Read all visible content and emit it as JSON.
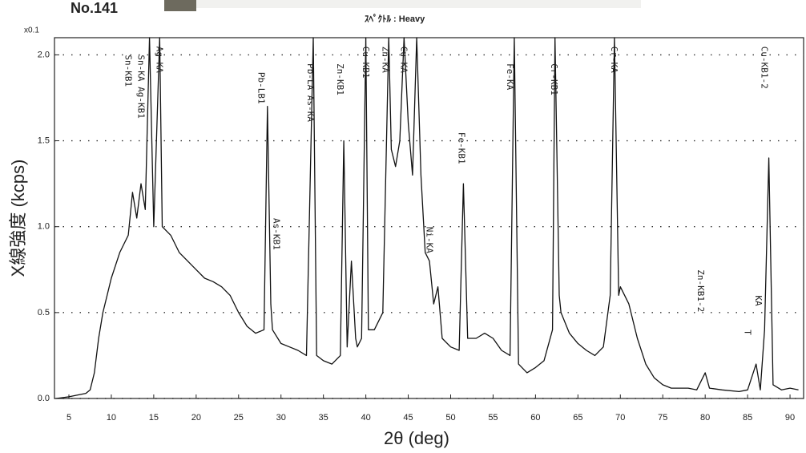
{
  "header": {
    "id": "No.141",
    "subtitle": "ｽﾍﾟｸﾄﾙ : Heavy",
    "scale_note": "x0.1"
  },
  "chart_data": {
    "type": "line",
    "x_label": "2θ (deg)",
    "y_label": "X線強度 (kcps)",
    "color": "#111111",
    "xlim": [
      3.3,
      91.6
    ],
    "ylim": [
      0,
      2.1
    ],
    "xticks": [
      5,
      10,
      15,
      20,
      25,
      30,
      35,
      40,
      45,
      50,
      55,
      60,
      65,
      70,
      75,
      80,
      85,
      90
    ],
    "yticks": [
      {
        "value": 0,
        "label": "0.0"
      },
      {
        "value": 0.5,
        "label": "0.5"
      },
      {
        "value": 1,
        "label": "1.0"
      },
      {
        "value": 1.5,
        "label": "1.5"
      },
      {
        "value": 2,
        "label": "2.0"
      }
    ],
    "grid": true,
    "x": [
      3.5,
      5,
      6,
      7,
      7.5,
      8,
      8.5,
      9,
      9.5,
      10,
      11,
      12,
      12.5,
      13,
      13.5,
      14,
      14.5,
      15,
      15.7,
      16,
      17,
      18,
      19,
      20,
      21,
      22,
      23,
      24,
      25,
      26,
      27,
      28,
      28.4,
      28.8,
      29,
      30,
      31,
      32,
      33,
      33.8,
      34.2,
      35,
      36,
      37,
      37.4,
      37.8,
      38,
      38.3,
      38.8,
      39,
      39.5,
      40,
      40.3,
      41,
      42,
      42.7,
      43,
      43.5,
      44,
      44.5,
      45,
      45.5,
      46,
      46.5,
      47,
      47.5,
      48,
      48.5,
      49,
      50,
      51,
      51.5,
      52,
      53,
      54,
      55,
      56,
      57,
      57.5,
      58,
      59,
      60,
      61,
      62,
      62.3,
      62.8,
      63,
      64,
      65,
      66,
      67,
      68,
      68.8,
      69.3,
      69.8,
      70,
      71,
      72,
      73,
      74,
      75,
      76,
      78,
      79,
      80,
      80.5,
      82,
      84,
      85,
      86,
      86.5,
      87,
      87.5,
      88,
      89,
      90,
      91
    ],
    "values": [
      0,
      0.01,
      0.02,
      0.03,
      0.05,
      0.15,
      0.35,
      0.5,
      0.6,
      0.7,
      0.85,
      0.95,
      1.2,
      1.05,
      1.25,
      1.1,
      2.1,
      1.0,
      2.1,
      1.0,
      0.95,
      0.85,
      0.8,
      0.75,
      0.7,
      0.68,
      0.65,
      0.6,
      0.5,
      0.42,
      0.38,
      0.4,
      1.7,
      0.55,
      0.4,
      0.32,
      0.3,
      0.28,
      0.25,
      2.1,
      0.25,
      0.22,
      0.2,
      0.25,
      1.5,
      0.3,
      0.5,
      0.8,
      0.35,
      0.3,
      0.35,
      2.1,
      0.4,
      0.4,
      0.5,
      2.1,
      1.45,
      1.35,
      1.5,
      2.1,
      1.6,
      1.3,
      2.1,
      1.3,
      0.85,
      0.8,
      0.55,
      0.65,
      0.35,
      0.3,
      0.28,
      1.25,
      0.35,
      0.35,
      0.38,
      0.35,
      0.28,
      0.25,
      2.1,
      0.2,
      0.15,
      0.18,
      0.22,
      0.4,
      2.1,
      0.6,
      0.5,
      0.38,
      0.32,
      0.28,
      0.25,
      0.3,
      0.6,
      2.1,
      0.6,
      0.65,
      0.55,
      0.35,
      0.2,
      0.12,
      0.08,
      0.06,
      0.06,
      0.05,
      0.15,
      0.06,
      0.05,
      0.04,
      0.05,
      0.2,
      0.05,
      0.4,
      1.4,
      0.08,
      0.05,
      0.06,
      0.05
    ],
    "annotations": [
      {
        "text": "Sn-KB1",
        "x": 12.5,
        "y": 2.0
      },
      {
        "text": "Sn-KA Ag-KB1",
        "x": 14,
        "y": 2.0
      },
      {
        "text": "Ag-KA",
        "x": 16.2,
        "y": 2.05
      },
      {
        "text": "Pb-LB1",
        "x": 28.2,
        "y": 1.9
      },
      {
        "text": "As-KB1",
        "x": 30,
        "y": 1.05
      },
      {
        "text": "Pb-LA As-KA",
        "x": 34,
        "y": 1.95
      },
      {
        "text": "Zn-KB1",
        "x": 37.5,
        "y": 1.95
      },
      {
        "text": "Cu-KB1",
        "x": 40.5,
        "y": 2.05
      },
      {
        "text": "Zn-KA",
        "x": 42.8,
        "y": 2.05
      },
      {
        "text": "Cu-KA",
        "x": 45,
        "y": 2.05
      },
      {
        "text": "Ni-KA",
        "x": 48,
        "y": 1.0
      },
      {
        "text": "Fe-KB1",
        "x": 51.8,
        "y": 1.55
      },
      {
        "text": "Fe-KA",
        "x": 57.5,
        "y": 1.95
      },
      {
        "text": "Cr-KB1",
        "x": 62.7,
        "y": 1.95
      },
      {
        "text": "Cr-KA",
        "x": 69.8,
        "y": 2.05
      },
      {
        "text": "Zn-KB1-2",
        "x": 80,
        "y": 0.75
      },
      {
        "text": "T",
        "x": 85.5,
        "y": 0.4
      },
      {
        "text": "KA",
        "x": 86.8,
        "y": 0.6
      },
      {
        "text": "Cu-KB1-2",
        "x": 87.5,
        "y": 2.05
      }
    ]
  }
}
